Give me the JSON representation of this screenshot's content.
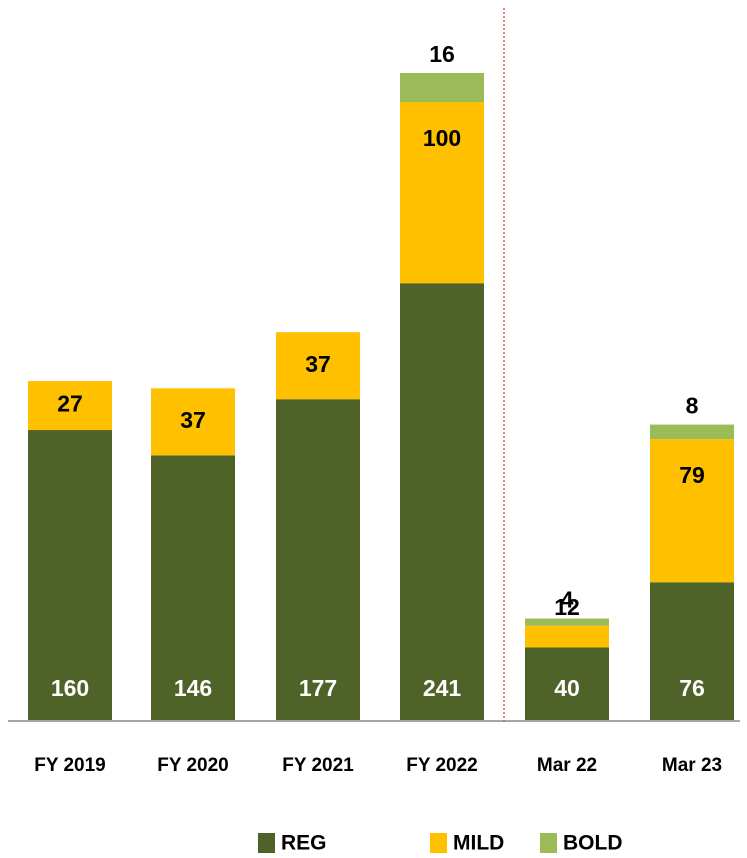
{
  "chart_data": {
    "type": "stacked_bar",
    "categories": [
      "FY 2019",
      "FY 2020",
      "FY 2021",
      "FY 2022",
      "Mar 22",
      "Mar 23"
    ],
    "series": [
      {
        "name": "REG",
        "color": "#4f6228",
        "values": [
          160,
          146,
          177,
          241,
          40,
          76
        ]
      },
      {
        "name": "MILD",
        "color": "#ffc000",
        "values": [
          27,
          37,
          37,
          100,
          12,
          79
        ]
      },
      {
        "name": "BOLD",
        "color": "#9bbb59",
        "values": [
          null,
          null,
          null,
          16,
          4,
          8
        ]
      }
    ],
    "legend": "bottom"
  }
}
